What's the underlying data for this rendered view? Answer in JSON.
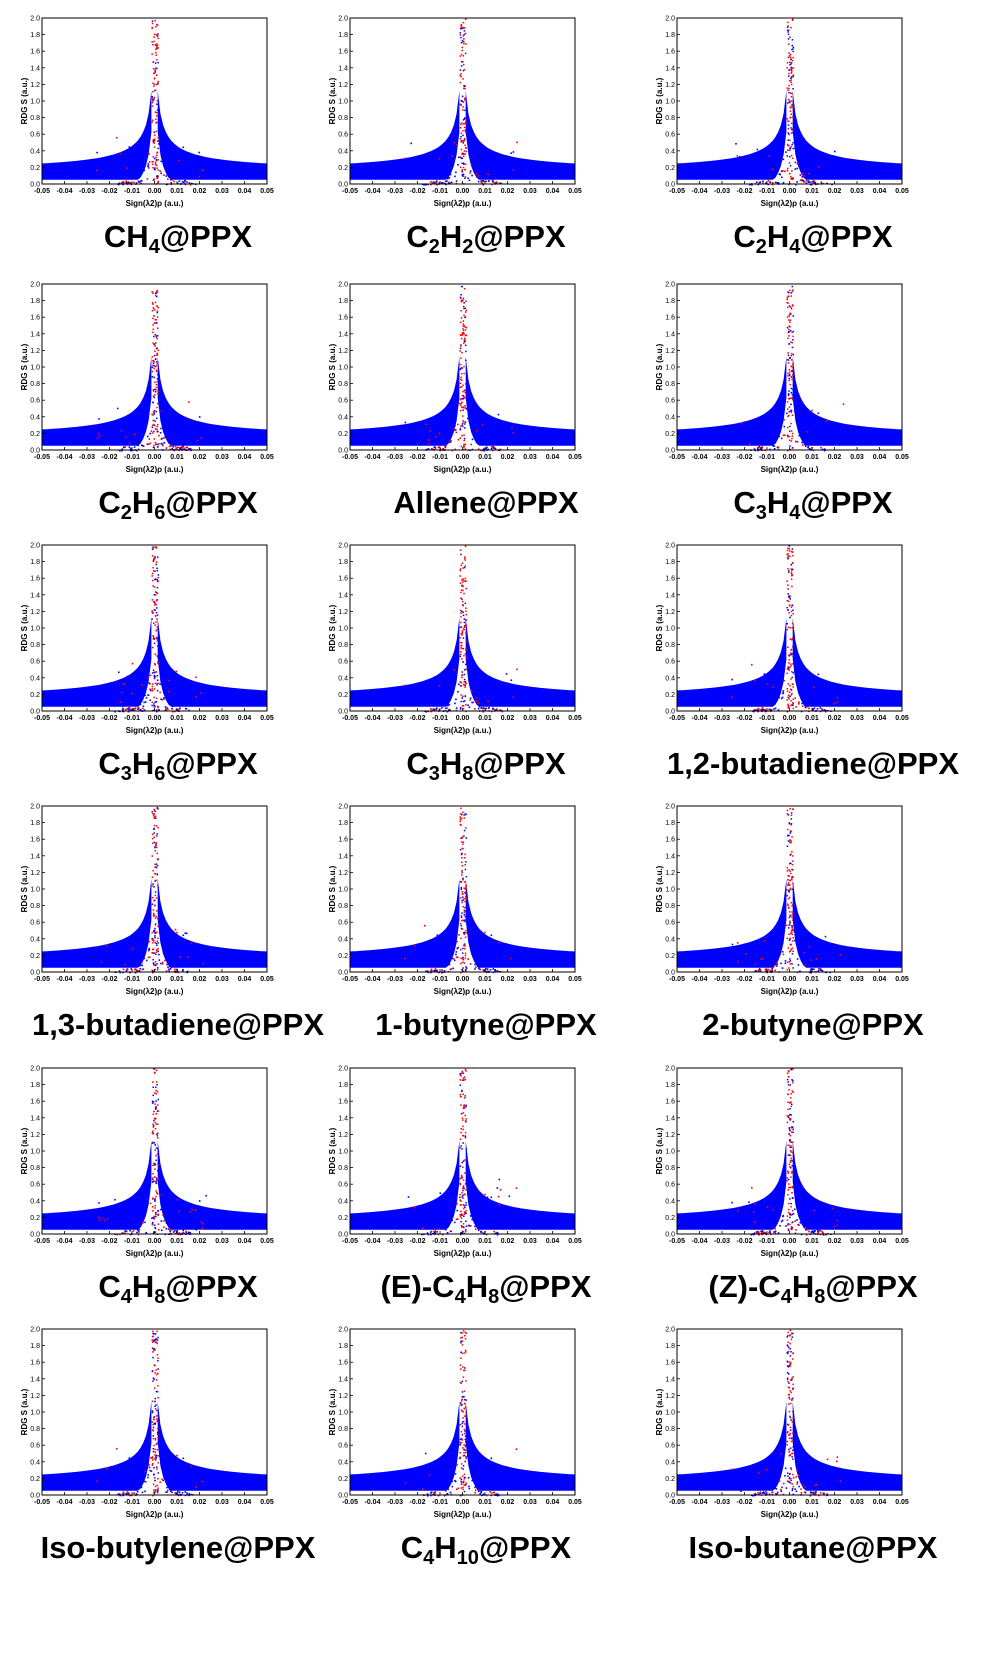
{
  "chart_data": {
    "type": "scatter",
    "panel_count": 18,
    "xlabel": "Sign(λ2)ρ (a.u.)",
    "ylabel": "RDG S (a.u.)",
    "xlim": [
      -0.05,
      0.05
    ],
    "ylim": [
      0.0,
      2.0
    ],
    "x_ticks": [
      "-0.05",
      "-0.04",
      "-0.03",
      "-0.02",
      "-0.01",
      "0.00",
      "0.01",
      "0.02",
      "0.03",
      "0.04",
      "0.05"
    ],
    "y_ticks": [
      "0.0",
      "0.2",
      "0.4",
      "0.6",
      "0.8",
      "1.0",
      "1.2",
      "1.4",
      "1.6",
      "1.8",
      "2.0"
    ],
    "series_colors": [
      "#0000ff",
      "#ff0000"
    ],
    "panels": [
      {
        "title": "CH4@PPX",
        "parts": [
          [
            "CH",
            false
          ],
          [
            "4",
            true
          ],
          [
            "@PPX",
            false
          ]
        ]
      },
      {
        "title": "C2H2@PPX",
        "parts": [
          [
            "C",
            false
          ],
          [
            "2",
            true
          ],
          [
            "H",
            false
          ],
          [
            "2",
            true
          ],
          [
            "@PPX",
            false
          ]
        ]
      },
      {
        "title": "C2H4@PPX",
        "parts": [
          [
            "C",
            false
          ],
          [
            "2",
            true
          ],
          [
            "H",
            false
          ],
          [
            "4",
            true
          ],
          [
            "@PPX",
            false
          ]
        ]
      },
      {
        "title": "C2H6@PPX",
        "parts": [
          [
            "C",
            false
          ],
          [
            "2",
            true
          ],
          [
            "H",
            false
          ],
          [
            "6",
            true
          ],
          [
            "@PPX",
            false
          ]
        ]
      },
      {
        "title": "Allene@PPX",
        "parts": [
          [
            "Allene@PPX",
            false
          ]
        ]
      },
      {
        "title": "C3H4@PPX",
        "parts": [
          [
            "C",
            false
          ],
          [
            "3",
            true
          ],
          [
            "H",
            false
          ],
          [
            "4",
            true
          ],
          [
            "@PPX",
            false
          ]
        ]
      },
      {
        "title": "C3H6@PPX",
        "parts": [
          [
            "C",
            false
          ],
          [
            "3",
            true
          ],
          [
            "H",
            false
          ],
          [
            "6",
            true
          ],
          [
            "@PPX",
            false
          ]
        ]
      },
      {
        "title": "C3H8@PPX",
        "parts": [
          [
            "C",
            false
          ],
          [
            "3",
            true
          ],
          [
            "H",
            false
          ],
          [
            "8",
            true
          ],
          [
            "@PPX",
            false
          ]
        ]
      },
      {
        "title": "1,2-butadiene@PPX",
        "parts": [
          [
            "1,2-butadiene@PPX",
            false
          ]
        ]
      },
      {
        "title": "1,3-butadiene@PPX",
        "parts": [
          [
            "1,3-butadiene@PPX",
            false
          ]
        ]
      },
      {
        "title": "1-butyne@PPX",
        "parts": [
          [
            "1-butyne@PPX",
            false
          ]
        ]
      },
      {
        "title": "2-butyne@PPX",
        "parts": [
          [
            "2-butyne@PPX",
            false
          ]
        ]
      },
      {
        "title": "C4H8@PPX",
        "parts": [
          [
            "C",
            false
          ],
          [
            "4",
            true
          ],
          [
            "H",
            false
          ],
          [
            "8",
            true
          ],
          [
            "@PPX",
            false
          ]
        ]
      },
      {
        "title": "(E)-C4H8@PPX",
        "parts": [
          [
            "(E)-C",
            false
          ],
          [
            "4",
            true
          ],
          [
            "H",
            false
          ],
          [
            "8",
            true
          ],
          [
            "@PPX",
            false
          ]
        ]
      },
      {
        "title": "(Z)-C4H8@PPX",
        "parts": [
          [
            "(Z)-C",
            false
          ],
          [
            "4",
            true
          ],
          [
            "H",
            false
          ],
          [
            "8",
            true
          ],
          [
            "@PPX",
            false
          ]
        ]
      },
      {
        "title": "Iso-butylene@PPX",
        "parts": [
          [
            "Iso-butylene@PPX",
            false
          ]
        ]
      },
      {
        "title": "C4H10@PPX",
        "parts": [
          [
            "C",
            false
          ],
          [
            "4",
            true
          ],
          [
            "H",
            false
          ],
          [
            "10",
            true
          ],
          [
            "@PPX",
            false
          ]
        ]
      },
      {
        "title": "Iso-butane@PPX",
        "parts": [
          [
            "Iso-butane@PPX",
            false
          ]
        ]
      }
    ]
  }
}
